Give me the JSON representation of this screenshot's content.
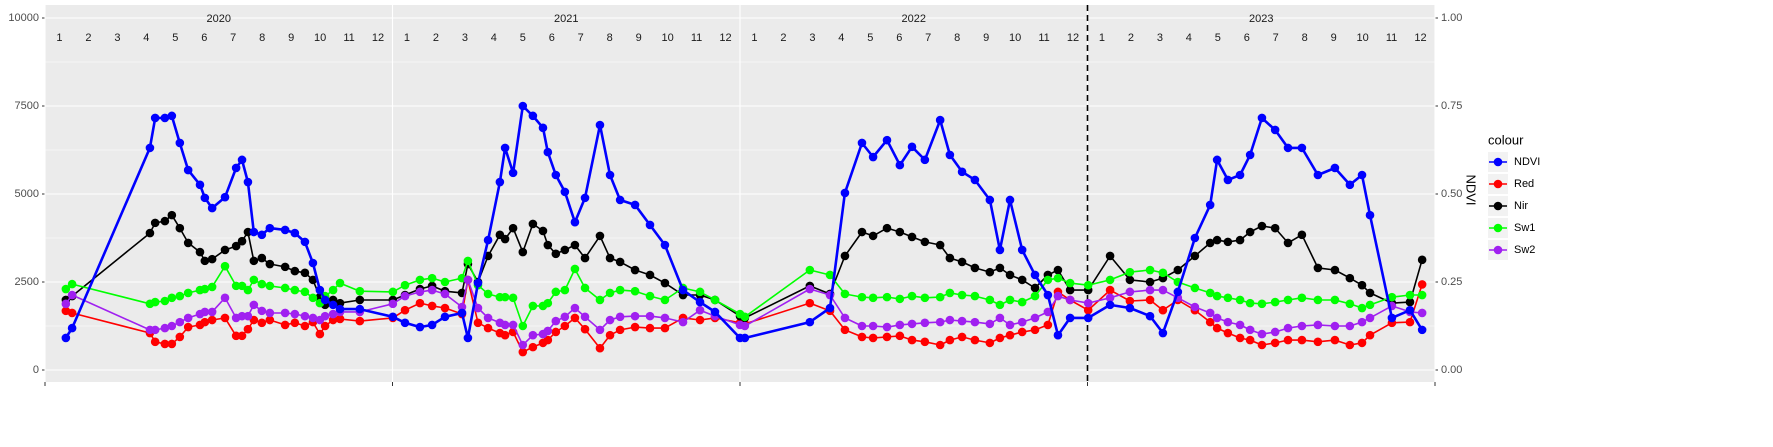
{
  "chart_data": {
    "type": "line",
    "y2_label": "NDVI",
    "legend_title": "colour",
    "legend_position": "right",
    "grid": true,
    "year_labels": [
      "2020",
      "2021",
      "2022",
      "2023"
    ],
    "month_labels": [
      "1",
      "2",
      "3",
      "4",
      "5",
      "6",
      "7",
      "8",
      "9",
      "10",
      "11",
      "12"
    ],
    "vline": 2023,
    "xlim": [
      2020,
      2024
    ],
    "xticks": [
      2020,
      2021,
      2022,
      2023,
      2024
    ],
    "ylim": [
      0,
      10000
    ],
    "yticks": [
      0,
      2500,
      5000,
      7500,
      10000
    ],
    "y2lim": [
      0,
      1
    ],
    "y2ticks": [
      {
        "value": 0,
        "label": "0.00"
      },
      {
        "value": 0.25,
        "label": "0.25"
      },
      {
        "value": 0.5,
        "label": "0.50"
      },
      {
        "value": 0.75,
        "label": "0.75"
      },
      {
        "value": 1,
        "label": "1.00"
      }
    ],
    "x": [
      2020.06,
      2020.078,
      2020.302,
      2020.317,
      2020.345,
      2020.365,
      2020.388,
      2020.412,
      2020.446,
      2020.46,
      2020.481,
      2020.518,
      2020.55,
      2020.567,
      2020.584,
      2020.601,
      2020.624,
      2020.647,
      2020.691,
      2020.719,
      2020.748,
      2020.771,
      2020.791,
      2020.806,
      2020.829,
      2020.849,
      2020.906,
      2021.001,
      2021.036,
      2021.079,
      2021.114,
      2021.151,
      2021.2,
      2021.217,
      2021.246,
      2021.275,
      2021.309,
      2021.324,
      2021.347,
      2021.375,
      2021.404,
      2021.433,
      2021.447,
      2021.47,
      2021.496,
      2021.525,
      2021.554,
      2021.597,
      2021.626,
      2021.655,
      2021.698,
      2021.741,
      2021.784,
      2021.836,
      2021.885,
      2021.928,
      2022.0,
      2022.014,
      2022.201,
      2022.259,
      2022.302,
      2022.351,
      2022.383,
      2022.423,
      2022.46,
      2022.495,
      2022.532,
      2022.576,
      2022.604,
      2022.639,
      2022.676,
      2022.719,
      2022.748,
      2022.777,
      2022.812,
      2022.849,
      2022.886,
      2022.915,
      2022.95,
      2023.002,
      2023.065,
      2023.122,
      2023.18,
      2023.217,
      2023.26,
      2023.309,
      2023.353,
      2023.373,
      2023.404,
      2023.439,
      2023.468,
      2023.502,
      2023.54,
      2023.577,
      2023.617,
      2023.663,
      2023.712,
      2023.755,
      2023.79,
      2023.813,
      2023.876,
      2023.928,
      2023.963
    ],
    "series": [
      {
        "name": "NDVI",
        "color": "#0000ff",
        "axis": "y2",
        "values": [
          0.091,
          0.119,
          0.631,
          0.716,
          0.716,
          0.722,
          0.645,
          0.568,
          0.526,
          0.489,
          0.46,
          0.491,
          0.574,
          0.597,
          0.534,
          0.392,
          0.384,
          0.403,
          0.398,
          0.389,
          0.364,
          0.304,
          0.227,
          0.199,
          0.185,
          0.173,
          0.173,
          0.151,
          0.134,
          0.122,
          0.128,
          0.151,
          0.162,
          0.091,
          0.247,
          0.369,
          0.534,
          0.631,
          0.56,
          0.75,
          0.722,
          0.688,
          0.619,
          0.554,
          0.506,
          0.42,
          0.489,
          0.696,
          0.554,
          0.483,
          0.469,
          0.412,
          0.355,
          0.227,
          0.193,
          0.165,
          0.091,
          0.091,
          0.136,
          0.176,
          0.503,
          0.645,
          0.605,
          0.653,
          0.582,
          0.634,
          0.597,
          0.71,
          0.611,
          0.563,
          0.54,
          0.483,
          0.341,
          0.483,
          0.341,
          0.27,
          0.213,
          0.099,
          0.148,
          0.148,
          0.185,
          0.176,
          0.153,
          0.105,
          0.222,
          0.375,
          0.469,
          0.597,
          0.54,
          0.554,
          0.611,
          0.716,
          0.682,
          0.631,
          0.631,
          0.554,
          0.574,
          0.526,
          0.554,
          0.44,
          0.148,
          0.17,
          0.114
        ]
      },
      {
        "name": "Red",
        "color": "#ff0000",
        "values": [
          1680,
          1620,
          1050,
          800,
          740,
          740,
          940,
          1220,
          1280,
          1360,
          1420,
          1480,
          970,
          970,
          1160,
          1420,
          1340,
          1420,
          1280,
          1340,
          1250,
          1360,
          1020,
          1250,
          1420,
          1450,
          1390,
          1480,
          1700,
          1900,
          1820,
          1760,
          1590,
          2560,
          1340,
          1190,
          1050,
          990,
          1080,
          510,
          650,
          770,
          850,
          1080,
          1250,
          1480,
          1160,
          620,
          990,
          1140,
          1220,
          1190,
          1190,
          1480,
          1420,
          1480,
          1340,
          1310,
          1900,
          1680,
          1140,
          940,
          910,
          940,
          970,
          850,
          800,
          710,
          850,
          940,
          850,
          770,
          910,
          990,
          1080,
          1140,
          1280,
          2220,
          1990,
          1700,
          2270,
          1960,
          1990,
          1700,
          1990,
          1700,
          1360,
          1190,
          1050,
          910,
          850,
          710,
          770,
          850,
          850,
          800,
          850,
          710,
          770,
          990,
          1340,
          1360,
          2430
        ]
      },
      {
        "name": "Nir",
        "color": "#000000",
        "values": [
          1990,
          2100,
          3890,
          4180,
          4230,
          4400,
          4030,
          3610,
          3350,
          3100,
          3150,
          3410,
          3520,
          3660,
          3920,
          3100,
          3180,
          3010,
          2930,
          2810,
          2760,
          2560,
          2070,
          1850,
          1990,
          1900,
          1990,
          1990,
          2130,
          2300,
          2390,
          2240,
          2190,
          3010,
          2500,
          3240,
          3840,
          3720,
          4030,
          3350,
          4150,
          3950,
          3550,
          3300,
          3410,
          3550,
          3180,
          3810,
          3180,
          3070,
          2840,
          2700,
          2470,
          2130,
          2130,
          1990,
          1530,
          1480,
          2390,
          2160,
          3240,
          3920,
          3810,
          4030,
          3920,
          3780,
          3640,
          3550,
          3180,
          3070,
          2900,
          2780,
          2900,
          2700,
          2560,
          2330,
          2700,
          2840,
          2270,
          2270,
          3240,
          2560,
          2500,
          2610,
          2840,
          3240,
          3610,
          3690,
          3640,
          3690,
          3920,
          4090,
          4030,
          3610,
          3840,
          2900,
          2840,
          2610,
          2410,
          2190,
          1900,
          1930,
          3130
        ]
      },
      {
        "name": "Sw1",
        "color": "#00ff00",
        "values": [
          2300,
          2440,
          1880,
          1930,
          1960,
          2050,
          2100,
          2190,
          2270,
          2300,
          2360,
          2950,
          2390,
          2390,
          2270,
          2560,
          2440,
          2390,
          2330,
          2270,
          2220,
          2050,
          1900,
          2100,
          2270,
          2470,
          2240,
          2220,
          2410,
          2560,
          2610,
          2500,
          2610,
          3100,
          2410,
          2160,
          2070,
          2070,
          2050,
          1250,
          1820,
          1820,
          1900,
          2220,
          2270,
          2870,
          2330,
          1990,
          2190,
          2270,
          2240,
          2100,
          1990,
          2330,
          2220,
          1990,
          1590,
          1510,
          2840,
          2700,
          2160,
          2070,
          2050,
          2070,
          2020,
          2100,
          2050,
          2070,
          2190,
          2130,
          2100,
          1990,
          1850,
          1990,
          1930,
          2100,
          2560,
          2610,
          2470,
          2410,
          2560,
          2780,
          2840,
          2760,
          2500,
          2330,
          2190,
          2100,
          2050,
          1990,
          1900,
          1880,
          1930,
          1990,
          2050,
          1990,
          1990,
          1880,
          1760,
          1850,
          2070,
          2130,
          2130
        ]
      },
      {
        "name": "Sw2",
        "color": "#a020f0",
        "values": [
          1880,
          2130,
          1140,
          1140,
          1190,
          1250,
          1360,
          1480,
          1590,
          1650,
          1650,
          2050,
          1480,
          1530,
          1530,
          1850,
          1680,
          1620,
          1620,
          1590,
          1530,
          1480,
          1420,
          1530,
          1590,
          1650,
          1650,
          1880,
          2100,
          2220,
          2270,
          2160,
          1790,
          2560,
          1760,
          1480,
          1340,
          1280,
          1280,
          710,
          990,
          1020,
          1110,
          1390,
          1510,
          1760,
          1510,
          1140,
          1420,
          1510,
          1530,
          1530,
          1480,
          1360,
          1700,
          1530,
          1280,
          1250,
          2300,
          2130,
          1480,
          1250,
          1250,
          1220,
          1280,
          1310,
          1340,
          1360,
          1420,
          1390,
          1360,
          1310,
          1480,
          1280,
          1360,
          1480,
          1650,
          2100,
          1990,
          1900,
          2050,
          2220,
          2270,
          2270,
          2050,
          1790,
          1620,
          1480,
          1360,
          1280,
          1140,
          1020,
          1080,
          1190,
          1250,
          1280,
          1250,
          1250,
          1360,
          1480,
          1820,
          1650,
          1620
        ]
      }
    ]
  }
}
